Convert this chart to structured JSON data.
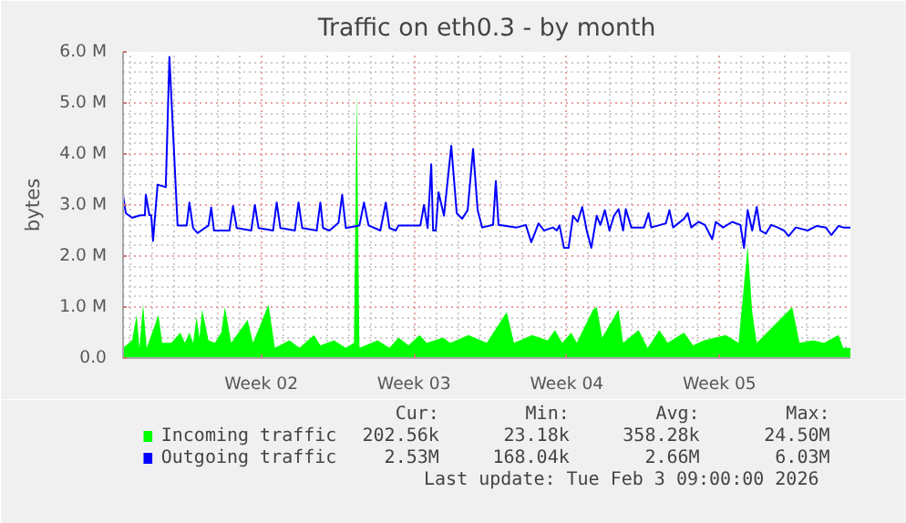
{
  "chart_data": {
    "type": "line",
    "title": "Traffic on eth0.3 - by month",
    "ylabel": "bytes",
    "xlim": [
      "2025-12-29T16:00",
      "2026-02-01T00:00"
    ],
    "xticks": [
      {
        "value": "2026-01-05",
        "label": "Week 02"
      },
      {
        "value": "2026-01-12",
        "label": "Week 03"
      },
      {
        "value": "2026-01-19",
        "label": "Week 04"
      },
      {
        "value": "2026-01-26",
        "label": "Week 05"
      }
    ],
    "ylim": [
      0,
      6
    ],
    "yticks": [
      {
        "value": 0,
        "label": "0.0"
      },
      {
        "value": 1,
        "label": "1.0 M"
      },
      {
        "value": 2,
        "label": "2.0 M"
      },
      {
        "value": 3,
        "label": "3.0 M"
      },
      {
        "value": 4,
        "label": "4.0 M"
      },
      {
        "value": 5,
        "label": "5.0 M"
      },
      {
        "value": 6,
        "label": "6.0 M"
      }
    ],
    "grid": true,
    "legend": "bottom",
    "series": [
      {
        "name": "Incoming traffic",
        "type": "area",
        "color": "#00ff00",
        "x": [
          "2025-12-29T16:00",
          "2025-12-30T02:00",
          "2025-12-30T07:00",
          "2025-12-30T10:00",
          "2025-12-30T14:00",
          "2025-12-30T18:00",
          "2025-12-31T07:00",
          "2025-12-31T11:00",
          "2025-12-31T21:00",
          "2026-01-01T07:00",
          "2026-01-01T12:00",
          "2026-01-01T17:00",
          "2026-01-01T21:00",
          "2026-01-02T01:00",
          "2026-01-02T04:00",
          "2026-01-02T07:00",
          "2026-01-02T14:00",
          "2026-01-02T21:00",
          "2026-01-03T04:00",
          "2026-01-03T08:00",
          "2026-01-03T15:00",
          "2026-01-04T09:00",
          "2026-01-04T15:00",
          "2026-01-05T08:00",
          "2026-01-05T15:00",
          "2026-01-06T07:00",
          "2026-01-06T18:00",
          "2026-01-07T10:00",
          "2026-01-07T17:00",
          "2026-01-08T08:00",
          "2026-01-08T21:00",
          "2026-01-09T06:00",
          "2026-01-09T09:00",
          "2026-01-09T12:00",
          "2026-01-10T08:00",
          "2026-01-10T21:00",
          "2026-01-11T07:00",
          "2026-01-11T18:00",
          "2026-01-12T06:00",
          "2026-01-12T14:00",
          "2026-01-13T08:00",
          "2026-01-13T16:00",
          "2026-01-14T12:00",
          "2026-01-15T08:00",
          "2026-01-16T06:00",
          "2026-01-16T14:00",
          "2026-01-17T10:00",
          "2026-01-18T03:00",
          "2026-01-18T11:00",
          "2026-01-18T19:00",
          "2026-01-19T05:00",
          "2026-01-19T11:00",
          "2026-01-20T05:00",
          "2026-01-20T09:00",
          "2026-01-20T15:00",
          "2026-01-21T09:00",
          "2026-01-21T14:00",
          "2026-01-22T07:00",
          "2026-01-22T17:00",
          "2026-01-23T06:00",
          "2026-01-23T15:00",
          "2026-01-24T09:00",
          "2026-01-24T19:00",
          "2026-01-25T07:00",
          "2026-01-26T07:00",
          "2026-01-26T21:00",
          "2026-01-27T07:00",
          "2026-01-27T12:00",
          "2026-01-27T17:00",
          "2026-01-29T08:00",
          "2026-01-29T16:00",
          "2026-01-30T07:00",
          "2026-01-30T19:00",
          "2026-01-31T11:00",
          "2026-01-31T16:00",
          "2026-02-01T00:00"
        ],
        "values": [
          0.2,
          0.35,
          0.85,
          0.2,
          1.05,
          0.2,
          0.85,
          0.3,
          0.3,
          0.5,
          0.3,
          0.5,
          0.3,
          0.8,
          0.4,
          0.95,
          0.35,
          0.3,
          0.5,
          1.0,
          0.3,
          0.75,
          0.3,
          1.05,
          0.2,
          0.35,
          0.2,
          0.45,
          0.25,
          0.35,
          0.2,
          0.3,
          5.2,
          0.2,
          0.35,
          0.2,
          0.4,
          0.25,
          0.45,
          0.3,
          0.4,
          0.3,
          0.45,
          0.3,
          0.9,
          0.3,
          0.45,
          0.35,
          0.55,
          0.3,
          0.5,
          0.3,
          0.95,
          1.0,
          0.4,
          0.95,
          0.3,
          0.55,
          0.2,
          0.55,
          0.3,
          0.5,
          0.25,
          0.35,
          0.45,
          0.3,
          2.2,
          0.9,
          0.3,
          1.0,
          0.3,
          0.35,
          0.3,
          0.45,
          0.2,
          0.2
        ]
      },
      {
        "name": "Outgoing traffic",
        "color": "#0000ff",
        "x": [
          "2025-12-29T16:00",
          "2025-12-29T19:00",
          "2025-12-30T02:00",
          "2025-12-30T11:00",
          "2025-12-30T16:00",
          "2025-12-30T17:00",
          "2025-12-30T21:00",
          "2025-12-30T23:00",
          "2025-12-31T01:00",
          "2025-12-31T06:00",
          "2025-12-31T15:00",
          "2025-12-31T19:00",
          "2026-01-01T04:00",
          "2026-01-01T14:00",
          "2026-01-01T17:00",
          "2026-01-01T21:00",
          "2026-01-02T02:00",
          "2026-01-02T14:00",
          "2026-01-02T17:00",
          "2026-01-02T20:00",
          "2026-01-03T13:00",
          "2026-01-03T17:00",
          "2026-01-03T21:00",
          "2026-01-04T13:00",
          "2026-01-04T17:00",
          "2026-01-04T21:00",
          "2026-01-05T13:00",
          "2026-01-05T17:00",
          "2026-01-05T21:00",
          "2026-01-06T13:00",
          "2026-01-06T17:00",
          "2026-01-06T21:00",
          "2026-01-07T13:00",
          "2026-01-07T17:00",
          "2026-01-07T20:00",
          "2026-01-08T03:00",
          "2026-01-08T13:00",
          "2026-01-08T17:00",
          "2026-01-08T21:00",
          "2026-01-09T12:00",
          "2026-01-09T17:00",
          "2026-01-09T22:00",
          "2026-01-10T11:00",
          "2026-01-10T17:00",
          "2026-01-10T21:00",
          "2026-01-11T04:00",
          "2026-01-11T07:00",
          "2026-01-12T07:00",
          "2026-01-12T11:00",
          "2026-01-12T15:00",
          "2026-01-12T19:00",
          "2026-01-12T21:00",
          "2026-01-13T00:00",
          "2026-01-13T03:00",
          "2026-01-13T09:00",
          "2026-01-13T17:00",
          "2026-01-13T23:00",
          "2026-01-14T05:00",
          "2026-01-14T11:00",
          "2026-01-14T17:00",
          "2026-01-14T22:00",
          "2026-01-15T03:00",
          "2026-01-15T15:00",
          "2026-01-15T18:00",
          "2026-01-15T21:00",
          "2026-01-16T17:00",
          "2026-01-17T03:00",
          "2026-01-17T09:00",
          "2026-01-17T17:00",
          "2026-01-17T23:00",
          "2026-01-18T09:00",
          "2026-01-18T13:00",
          "2026-01-18T16:00",
          "2026-01-18T21:00",
          "2026-01-19T02:00",
          "2026-01-19T07:00",
          "2026-01-19T12:00",
          "2026-01-19T17:00",
          "2026-01-19T22:00",
          "2026-01-20T03:00",
          "2026-01-20T09:00",
          "2026-01-20T13:00",
          "2026-01-20T18:00",
          "2026-01-20T23:00",
          "2026-01-21T04:00",
          "2026-01-21T09:00",
          "2026-01-21T14:00",
          "2026-01-21T17:00",
          "2026-01-21T23:00",
          "2026-01-22T13:00",
          "2026-01-22T18:00",
          "2026-01-22T21:00",
          "2026-01-23T13:00",
          "2026-01-23T17:00",
          "2026-01-23T21:00",
          "2026-01-24T09:00",
          "2026-01-24T13:00",
          "2026-01-24T17:00",
          "2026-01-25T01:00",
          "2026-01-25T08:00",
          "2026-01-25T16:00",
          "2026-01-25T20:00",
          "2026-01-26T04:00",
          "2026-01-26T14:00",
          "2026-01-26T23:00",
          "2026-01-27T03:00",
          "2026-01-27T07:00",
          "2026-01-27T12:00",
          "2026-01-27T17:00",
          "2026-01-27T21:00",
          "2026-01-28T03:00",
          "2026-01-28T09:00",
          "2026-01-28T16:00",
          "2026-01-28T23:00",
          "2026-01-29T04:00",
          "2026-01-29T12:00",
          "2026-01-30T01:00",
          "2026-01-30T11:00",
          "2026-01-30T21:00",
          "2026-01-31T03:00",
          "2026-01-31T11:00",
          "2026-01-31T16:00",
          "2026-02-01T00:00"
        ],
        "values": [
          3.19,
          2.84,
          2.75,
          2.8,
          2.8,
          3.2,
          2.8,
          2.8,
          2.3,
          3.4,
          3.35,
          5.9,
          2.6,
          2.6,
          3.05,
          2.55,
          2.45,
          2.6,
          2.95,
          2.5,
          2.5,
          2.98,
          2.55,
          2.5,
          3.0,
          2.55,
          2.5,
          3.05,
          2.55,
          2.5,
          3.05,
          2.55,
          2.5,
          3.05,
          2.55,
          2.5,
          2.65,
          3.2,
          2.55,
          2.6,
          3.05,
          2.6,
          2.5,
          3.05,
          2.55,
          2.5,
          2.6,
          2.6,
          3.0,
          2.55,
          3.8,
          2.5,
          2.5,
          3.25,
          2.79,
          4.16,
          2.84,
          2.73,
          2.9,
          4.1,
          2.9,
          2.56,
          2.61,
          3.47,
          2.61,
          2.56,
          2.61,
          2.27,
          2.64,
          2.5,
          2.56,
          2.5,
          2.6,
          2.16,
          2.16,
          2.79,
          2.67,
          2.96,
          2.5,
          2.16,
          2.79,
          2.61,
          2.9,
          2.5,
          2.79,
          2.92,
          2.5,
          2.92,
          2.56,
          2.56,
          2.84,
          2.56,
          2.64,
          2.9,
          2.56,
          2.73,
          2.84,
          2.56,
          2.67,
          2.61,
          2.33,
          2.67,
          2.56,
          2.67,
          2.61,
          2.16,
          2.9,
          2.5,
          2.96,
          2.5,
          2.44,
          2.61,
          2.56,
          2.5,
          2.39,
          2.56,
          2.5,
          2.59,
          2.56,
          2.41,
          2.59,
          2.56,
          2.56
        ]
      }
    ],
    "annotations": [
      "Cur:",
      "Min:",
      "Avg:",
      "Max:",
      "202.56k",
      "23.18k",
      "358.28k",
      "24.50M",
      "2.53M",
      "168.04k",
      "2.66M",
      "6.03M",
      "Last update: Tue Feb  3 09:00:00 2026"
    ]
  }
}
